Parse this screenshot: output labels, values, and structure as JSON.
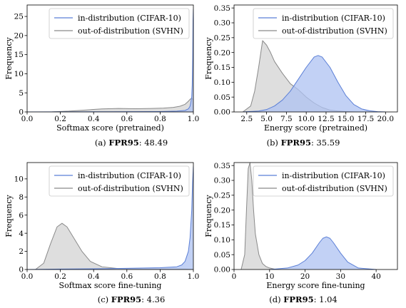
{
  "colors": {
    "in_line": "#5b7fd6",
    "in_fill": "#aec2f2",
    "out_line": "#8a8a8a",
    "out_fill": "#d3d3d3"
  },
  "captions": [
    {
      "tag": "(a)",
      "bold": "FPR95",
      "rest": ": 48.49"
    },
    {
      "tag": "(b)",
      "bold": "FPR95",
      "rest": ": 35.59"
    },
    {
      "tag": "(c)",
      "bold": "FPR95",
      "rest": ": 4.36"
    },
    {
      "tag": "(d)",
      "bold": "FPR95",
      "rest": ": 1.04"
    }
  ],
  "chart_data": [
    {
      "type": "area",
      "xlabel": "Softmax score (pretrained)",
      "ylabel": "Frequency",
      "xlim": [
        0.0,
        1.0
      ],
      "ylim": [
        0,
        28
      ],
      "xticks": [
        0.0,
        0.2,
        0.4,
        0.6,
        0.8,
        1.0
      ],
      "xtick_labels": [
        "0.0",
        "0.2",
        "0.4",
        "0.6",
        "0.8",
        "1.0"
      ],
      "yticks": [
        0,
        5,
        10,
        15,
        20,
        25
      ],
      "ytick_labels": [
        "0",
        "5",
        "10",
        "15",
        "20",
        "25"
      ],
      "legend_position": "top-right",
      "grid": false,
      "series": [
        {
          "name": "in-distribution (CIFAR-10)",
          "color_key": "in",
          "x": [
            0.0,
            0.2,
            0.5,
            0.8,
            0.9,
            0.95,
            0.97,
            0.98,
            0.985,
            0.99,
            0.993,
            0.996,
            0.998,
            1.0
          ],
          "y": [
            0,
            0.02,
            0.05,
            0.1,
            0.2,
            0.4,
            0.8,
            1.5,
            2.5,
            4,
            7,
            14,
            24,
            27
          ]
        },
        {
          "name": "out-of-distribution (SVHN)",
          "color_key": "out",
          "x": [
            0.0,
            0.15,
            0.25,
            0.35,
            0.45,
            0.55,
            0.65,
            0.75,
            0.82,
            0.88,
            0.92,
            0.95,
            0.97,
            0.98,
            0.99,
            1.0
          ],
          "y": [
            0,
            0.02,
            0.2,
            0.5,
            0.8,
            0.9,
            0.85,
            0.9,
            1.0,
            1.2,
            1.5,
            2.0,
            2.8,
            3.3,
            3.6,
            3.2
          ]
        }
      ]
    },
    {
      "type": "area",
      "xlabel": "Energy score (pretrained)",
      "ylabel": "Frequency",
      "xlim": [
        0.9,
        21.5
      ],
      "ylim": [
        0,
        0.36
      ],
      "xticks": [
        2.5,
        5.0,
        7.5,
        10.0,
        12.5,
        15.0,
        17.5,
        20.0
      ],
      "xtick_labels": [
        "2.5",
        "5.0",
        "7.5",
        "10.0",
        "12.5",
        "15.0",
        "17.5",
        "20.0"
      ],
      "yticks": [
        0.0,
        0.05,
        0.1,
        0.15,
        0.2,
        0.25,
        0.3,
        0.35
      ],
      "ytick_labels": [
        "0.00",
        "0.05",
        "0.10",
        "0.15",
        "0.20",
        "0.25",
        "0.30",
        "0.35"
      ],
      "legend_position": "top-right",
      "grid": false,
      "series": [
        {
          "name": "in-distribution (CIFAR-10)",
          "color_key": "in",
          "x": [
            2,
            4,
            5,
            6,
            7,
            8,
            9,
            10,
            11,
            11.5,
            12,
            13,
            14,
            15,
            16,
            17,
            18,
            19,
            20
          ],
          "y": [
            0,
            0.003,
            0.008,
            0.02,
            0.04,
            0.07,
            0.11,
            0.15,
            0.185,
            0.19,
            0.185,
            0.15,
            0.1,
            0.055,
            0.025,
            0.01,
            0.004,
            0.001,
            0
          ]
        },
        {
          "name": "out-of-distribution (SVHN)",
          "color_key": "out",
          "x": [
            2,
            3,
            3.5,
            4,
            4.5,
            5,
            5.5,
            6,
            7,
            8,
            9,
            10,
            11,
            12,
            13,
            14,
            15,
            16
          ],
          "y": [
            0,
            0.02,
            0.07,
            0.15,
            0.24,
            0.225,
            0.2,
            0.17,
            0.13,
            0.095,
            0.075,
            0.05,
            0.03,
            0.015,
            0.006,
            0.003,
            0.001,
            0
          ]
        }
      ]
    },
    {
      "type": "area",
      "xlabel": "Softmax score fine-tuning",
      "ylabel": "Frequency",
      "xlim": [
        0.0,
        1.0
      ],
      "ylim": [
        0,
        11.8
      ],
      "xticks": [
        0.0,
        0.2,
        0.4,
        0.6,
        0.8,
        1.0
      ],
      "xtick_labels": [
        "0.0",
        "0.2",
        "0.4",
        "0.6",
        "0.8",
        "1.0"
      ],
      "yticks": [
        0,
        2,
        4,
        6,
        8,
        10
      ],
      "ytick_labels": [
        "0",
        "2",
        "4",
        "6",
        "8",
        "10"
      ],
      "legend_position": "top-right",
      "grid": false,
      "series": [
        {
          "name": "in-distribution (CIFAR-10)",
          "color_key": "in",
          "x": [
            0.0,
            0.2,
            0.5,
            0.8,
            0.9,
            0.93,
            0.95,
            0.97,
            0.98,
            0.99,
            0.995,
            1.0
          ],
          "y": [
            0,
            0.05,
            0.1,
            0.2,
            0.3,
            0.5,
            0.9,
            2.0,
            3.5,
            6.5,
            9.5,
            11.4
          ]
        },
        {
          "name": "out-of-distribution (SVHN)",
          "color_key": "out",
          "x": [
            0.05,
            0.1,
            0.14,
            0.18,
            0.21,
            0.24,
            0.28,
            0.33,
            0.38,
            0.45,
            0.55,
            0.7,
            0.85,
            0.95,
            1.0
          ],
          "y": [
            0,
            0.7,
            2.8,
            4.7,
            5.1,
            4.7,
            3.5,
            2.0,
            0.9,
            0.3,
            0.1,
            0.05,
            0.05,
            0.05,
            0
          ]
        }
      ]
    },
    {
      "type": "area",
      "xlabel": "Energy score fine-tuning",
      "ylabel": "Frequency",
      "xlim": [
        0,
        46
      ],
      "ylim": [
        0,
        0.36
      ],
      "xticks": [
        0,
        10,
        20,
        30,
        40
      ],
      "xtick_labels": [
        "0",
        "10",
        "20",
        "30",
        "40"
      ],
      "yticks": [
        0.0,
        0.05,
        0.1,
        0.15,
        0.2,
        0.25,
        0.3,
        0.35
      ],
      "ytick_labels": [
        "0.00",
        "0.05",
        "0.10",
        "0.15",
        "0.20",
        "0.25",
        "0.30",
        "0.35"
      ],
      "legend_position": "top-right",
      "grid": false,
      "series": [
        {
          "name": "in-distribution (CIFAR-10)",
          "color_key": "in",
          "x": [
            10,
            15,
            18,
            20,
            22,
            24,
            25,
            26,
            27,
            28,
            30,
            32,
            35,
            40
          ],
          "y": [
            0,
            0.005,
            0.015,
            0.03,
            0.055,
            0.09,
            0.105,
            0.11,
            0.105,
            0.09,
            0.055,
            0.025,
            0.005,
            0
          ]
        },
        {
          "name": "out-of-distribution (SVHN)",
          "color_key": "out",
          "x": [
            2,
            3,
            3.5,
            4,
            4.5,
            5,
            5.5,
            6,
            7,
            8,
            9,
            10,
            12
          ],
          "y": [
            0,
            0.05,
            0.2,
            0.34,
            0.36,
            0.3,
            0.2,
            0.12,
            0.05,
            0.02,
            0.01,
            0.005,
            0
          ]
        }
      ]
    }
  ]
}
